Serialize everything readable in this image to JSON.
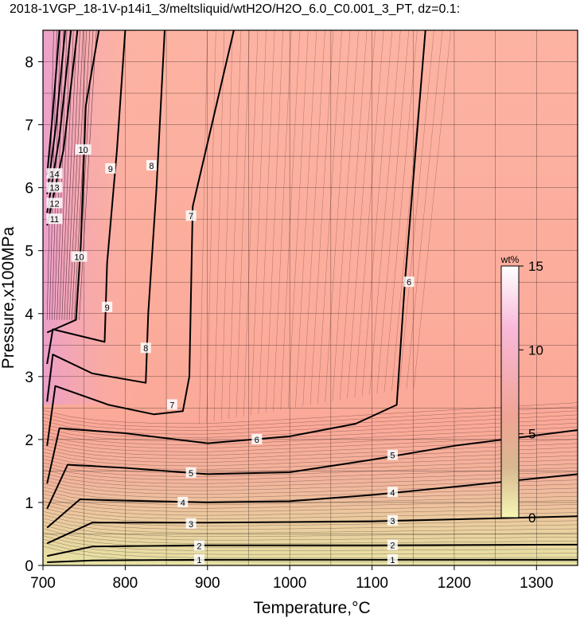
{
  "title": "2018-1VGP_18-1V-p14i1_3/meltsliquid/wtH2O/H2O_6.0_C0.001_3_PT, dz=0.1:",
  "chart_data": {
    "type": "heatmap",
    "xlabel": "Temperature,°C",
    "ylabel": "Pressure,x100MPa",
    "xlim": [
      700,
      1350
    ],
    "ylim": [
      0,
      8.5
    ],
    "xticks": [
      700,
      800,
      900,
      1000,
      1100,
      1200,
      1300
    ],
    "yticks": [
      0,
      1,
      2,
      3,
      4,
      5,
      6,
      7,
      8
    ],
    "grid": true,
    "colorbar": {
      "label": "wt%",
      "range": [
        0,
        15
      ],
      "ticks": [
        0,
        5,
        10,
        15
      ],
      "colors": [
        "#f6f6b4",
        "#d8b890",
        "#f0a494",
        "#f8b8d8",
        "#ffffff"
      ],
      "placement": "right, inside plot"
    },
    "contours": [
      {
        "level": 1,
        "points": [
          [
            705,
            0.05
          ],
          [
            760,
            0.08
          ],
          [
            900,
            0.09
          ],
          [
            1100,
            0.09
          ],
          [
            1350,
            0.09
          ]
        ]
      },
      {
        "level": 2,
        "points": [
          [
            705,
            0.15
          ],
          [
            760,
            0.3
          ],
          [
            900,
            0.32
          ],
          [
            1100,
            0.32
          ],
          [
            1350,
            0.33
          ]
        ]
      },
      {
        "level": 3,
        "points": [
          [
            705,
            0.35
          ],
          [
            760,
            0.68
          ],
          [
            900,
            0.68
          ],
          [
            1100,
            0.7
          ],
          [
            1350,
            0.78
          ]
        ]
      },
      {
        "level": 4,
        "points": [
          [
            705,
            0.6
          ],
          [
            745,
            1.05
          ],
          [
            800,
            1.03
          ],
          [
            900,
            1.0
          ],
          [
            1000,
            1.02
          ],
          [
            1100,
            1.12
          ],
          [
            1200,
            1.25
          ],
          [
            1350,
            1.45
          ]
        ]
      },
      {
        "level": 5,
        "points": [
          [
            705,
            0.9
          ],
          [
            730,
            1.6
          ],
          [
            800,
            1.55
          ],
          [
            900,
            1.45
          ],
          [
            1000,
            1.48
          ],
          [
            1100,
            1.68
          ],
          [
            1200,
            1.9
          ],
          [
            1350,
            2.15
          ]
        ]
      },
      {
        "level": 6,
        "points": [
          [
            705,
            1.3
          ],
          [
            720,
            2.18
          ],
          [
            800,
            2.1
          ],
          [
            900,
            1.94
          ],
          [
            1000,
            2.05
          ],
          [
            1080,
            2.25
          ],
          [
            1130,
            2.55
          ],
          [
            1140,
            4.5
          ],
          [
            1165,
            8.5
          ]
        ]
      },
      {
        "level": 7,
        "points": [
          [
            705,
            1.9
          ],
          [
            715,
            2.85
          ],
          [
            780,
            2.55
          ],
          [
            835,
            2.4
          ],
          [
            870,
            2.45
          ],
          [
            878,
            3.0
          ],
          [
            882,
            5.7
          ],
          [
            932,
            8.5
          ]
        ]
      },
      {
        "level": 8,
        "points": [
          [
            705,
            2.6
          ],
          [
            712,
            3.35
          ],
          [
            760,
            3.05
          ],
          [
            825,
            2.9
          ],
          [
            828,
            4.0
          ],
          [
            838,
            6.0
          ],
          [
            848,
            8.5
          ]
        ]
      },
      {
        "level": 9,
        "points": [
          [
            705,
            3.2
          ],
          [
            712,
            3.75
          ],
          [
            775,
            3.55
          ],
          [
            778,
            4.8
          ],
          [
            790,
            6.6
          ],
          [
            800,
            8.5
          ]
        ]
      },
      {
        "level": 10,
        "points": [
          [
            705,
            3.7
          ],
          [
            740,
            3.9
          ],
          [
            746,
            5.1
          ],
          [
            752,
            7.3
          ],
          [
            768,
            8.5
          ]
        ]
      },
      {
        "level": 11,
        "points": [
          [
            705,
            5.4
          ],
          [
            725,
            6.6
          ],
          [
            742,
            8.5
          ]
        ]
      },
      {
        "level": 12,
        "points": [
          [
            705,
            5.6
          ],
          [
            720,
            6.8
          ],
          [
            734,
            8.5
          ]
        ]
      },
      {
        "level": 13,
        "points": [
          [
            705,
            5.9
          ],
          [
            716,
            7.0
          ],
          [
            727,
            8.5
          ]
        ]
      },
      {
        "level": 14,
        "points": [
          [
            705,
            6.2
          ],
          [
            712,
            7.2
          ],
          [
            720,
            8.5
          ]
        ]
      }
    ],
    "contour_labels": [
      {
        "text": "1",
        "x": 1125,
        "y": 0.09
      },
      {
        "text": "2",
        "x": 1125,
        "y": 0.32
      },
      {
        "text": "3",
        "x": 1125,
        "y": 0.71
      },
      {
        "text": "4",
        "x": 1125,
        "y": 1.16
      },
      {
        "text": "5",
        "x": 1125,
        "y": 1.75
      },
      {
        "text": "6",
        "x": 1145,
        "y": 4.5
      },
      {
        "text": "7",
        "x": 880,
        "y": 5.55
      },
      {
        "text": "8",
        "x": 832,
        "y": 6.35
      },
      {
        "text": "9",
        "x": 782,
        "y": 6.3
      },
      {
        "text": "10",
        "x": 749,
        "y": 6.6
      },
      {
        "text": "1",
        "x": 890,
        "y": 0.09
      },
      {
        "text": "2",
        "x": 890,
        "y": 0.31
      },
      {
        "text": "3",
        "x": 880,
        "y": 0.66
      },
      {
        "text": "4",
        "x": 870,
        "y": 1.0
      },
      {
        "text": "5",
        "x": 880,
        "y": 1.47
      },
      {
        "text": "6",
        "x": 960,
        "y": 2.0
      },
      {
        "text": "7",
        "x": 857,
        "y": 2.55
      },
      {
        "text": "8",
        "x": 825,
        "y": 3.45
      },
      {
        "text": "9",
        "x": 778,
        "y": 4.1
      },
      {
        "text": "10",
        "x": 744,
        "y": 4.9
      },
      {
        "text": "11",
        "x": 714,
        "y": 5.5
      },
      {
        "text": "12",
        "x": 714,
        "y": 5.75
      },
      {
        "text": "13",
        "x": 714,
        "y": 6.0
      },
      {
        "text": "14",
        "x": 714,
        "y": 6.22
      }
    ]
  }
}
